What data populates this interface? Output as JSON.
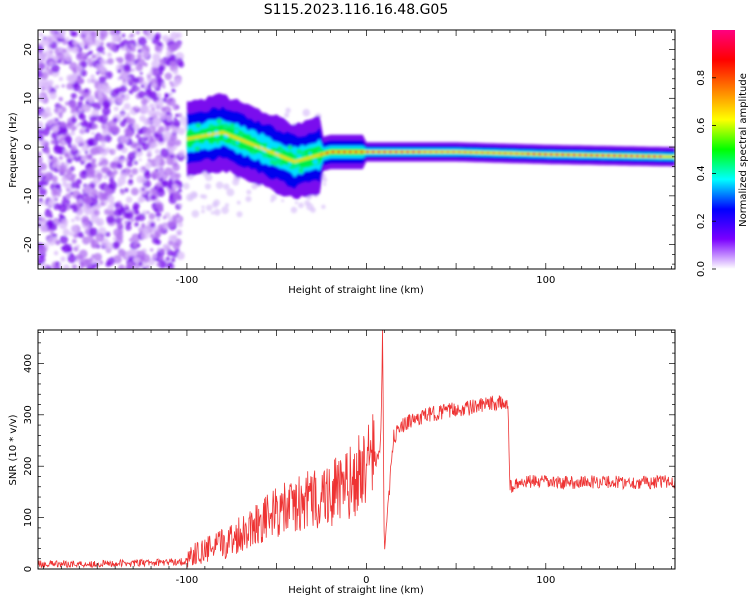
{
  "title": "S115.2023.116.16.48.G05",
  "chart_data": [
    {
      "type": "heatmap",
      "xlabel": "Height of straight line (km)",
      "ylabel": "Frequency (Hz)",
      "xlim": [
        -183,
        172
      ],
      "ylim": [
        -25,
        24
      ],
      "xticks": [
        -100,
        100
      ],
      "yticks": [
        -20,
        -10,
        0,
        10,
        20
      ],
      "colorbar": {
        "label": "Normalized spectral amplitude",
        "range": [
          0,
          1
        ],
        "ticks": [
          0.0,
          0.2,
          0.4,
          0.6,
          0.8
        ],
        "tick_labels": [
          "0.0",
          "0.2",
          "0.4",
          "0.6",
          "0.8"
        ],
        "colors": [
          "#ffffff",
          "#7a00ff",
          "#0000ff",
          "#00ffff",
          "#00ff00",
          "#ffff00",
          "#ff8000",
          "#ff0000",
          "#ff0080"
        ]
      },
      "ridge": [
        {
          "x": -95,
          "y": 2
        },
        {
          "x": -80,
          "y": 3
        },
        {
          "x": -60,
          "y": 0
        },
        {
          "x": -40,
          "y": -3
        },
        {
          "x": -20,
          "y": -1
        },
        {
          "x": 0,
          "y": -1
        },
        {
          "x": 50,
          "y": -1
        },
        {
          "x": 100,
          "y": -1.5
        },
        {
          "x": 172,
          "y": -2
        }
      ]
    },
    {
      "type": "line",
      "xlabel": "Height of straight line (km)",
      "ylabel": "SNR (10 * v/v)",
      "xlim": [
        -183,
        172
      ],
      "ylim": [
        0,
        465
      ],
      "xticks": [
        -100,
        0,
        100
      ],
      "yticks": [
        0,
        100,
        200,
        300,
        400
      ],
      "color": "#ee3333",
      "x": [
        -183,
        -150,
        -120,
        -100,
        -90,
        -80,
        -70,
        -60,
        -50,
        -40,
        -30,
        -20,
        -10,
        -5,
        0,
        5,
        8,
        9,
        10,
        15,
        20,
        30,
        40,
        50,
        60,
        70,
        79,
        80,
        90,
        110,
        130,
        150,
        172
      ],
      "values": [
        10,
        10,
        12,
        15,
        25,
        35,
        55,
        75,
        90,
        100,
        110,
        120,
        130,
        150,
        170,
        200,
        240,
        465,
        20,
        255,
        280,
        295,
        305,
        310,
        315,
        322,
        322,
        160,
        170,
        168,
        170,
        168,
        170
      ]
    }
  ]
}
